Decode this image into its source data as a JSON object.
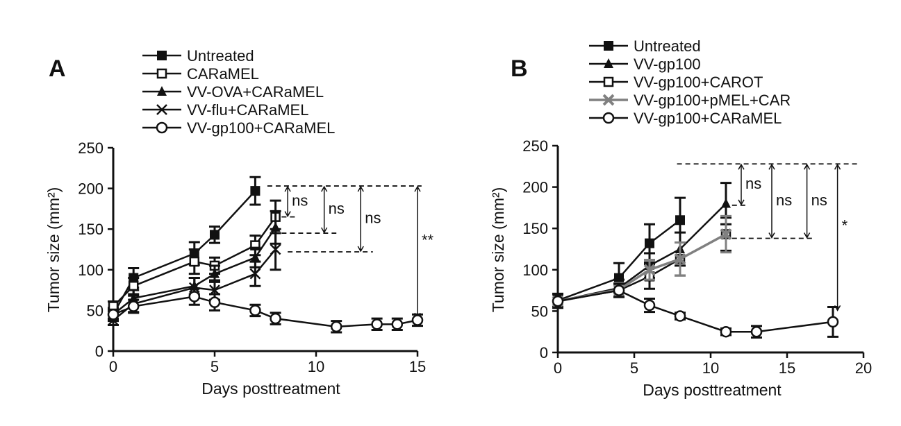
{
  "chart_data": [
    {
      "panel_label": "A",
      "type": "line",
      "xlabel": "Days posttreatment",
      "ylabel": "Tumor size (mm²)",
      "xlim": [
        0,
        15
      ],
      "ylim": [
        0,
        250
      ],
      "xticks": [
        0,
        5,
        10,
        15
      ],
      "yticks": [
        0,
        50,
        100,
        150,
        200,
        250
      ],
      "legend": "top",
      "grid": false,
      "series": [
        {
          "name": "Untreated",
          "marker": "square-filled",
          "color": "#111111",
          "x": [
            0,
            1,
            4,
            5,
            7
          ],
          "y": [
            45,
            90,
            120,
            143,
            197
          ],
          "err": [
            8,
            12,
            14,
            10,
            17
          ]
        },
        {
          "name": "CARaMEL",
          "marker": "square-open",
          "color": "#111111",
          "x": [
            0,
            1,
            4,
            5,
            7,
            8
          ],
          "y": [
            55,
            80,
            110,
            105,
            130,
            165
          ],
          "err": [
            6,
            10,
            15,
            10,
            12,
            20
          ]
        },
        {
          "name": "VV-OVA+CARaMEL",
          "marker": "triangle-filled",
          "color": "#111111",
          "x": [
            0,
            1,
            4,
            5,
            7,
            8
          ],
          "y": [
            45,
            65,
            80,
            95,
            115,
            152
          ],
          "err": [
            6,
            10,
            10,
            10,
            12,
            20
          ]
        },
        {
          "name": "VV-flu+CARaMEL",
          "marker": "x",
          "color": "#111111",
          "x": [
            0,
            1,
            4,
            5,
            7,
            8
          ],
          "y": [
            38,
            58,
            78,
            75,
            95,
            125
          ],
          "err": [
            6,
            10,
            12,
            12,
            15,
            25
          ]
        },
        {
          "name": "VV-gp100+CARaMEL",
          "marker": "circle-open",
          "color": "#111111",
          "x": [
            0,
            1,
            4,
            5,
            7,
            8,
            11,
            13,
            14,
            15
          ],
          "y": [
            45,
            55,
            67,
            60,
            50,
            40,
            30,
            33,
            33,
            38
          ],
          "err": [
            5,
            8,
            10,
            10,
            7,
            7,
            7,
            7,
            7,
            7
          ]
        }
      ],
      "annotations": [
        {
          "label": "ns",
          "x": 8.6,
          "from": 203,
          "to": 165
        },
        {
          "label": "ns",
          "x": 10.4,
          "from": 203,
          "to": 145
        },
        {
          "label": "ns",
          "x": 12.2,
          "from": 203,
          "to": 122
        },
        {
          "label": "**",
          "x": 15,
          "from": 203,
          "to": 40
        }
      ],
      "dashed_lines": [
        {
          "y": 203,
          "x": [
            7.6,
            15.2
          ]
        },
        {
          "y": 165,
          "x": [
            8.3,
            9.1
          ]
        },
        {
          "y": 145,
          "x": [
            8.3,
            11
          ]
        },
        {
          "y": 122,
          "x": [
            8.6,
            12.8
          ]
        }
      ]
    },
    {
      "panel_label": "B",
      "type": "line",
      "xlabel": "Days posttreatment",
      "ylabel": "Tumor size (mm²)",
      "xlim": [
        0,
        20
      ],
      "ylim": [
        0,
        250
      ],
      "xticks": [
        0,
        5,
        10,
        15,
        20
      ],
      "yticks": [
        0,
        50,
        100,
        150,
        200,
        250
      ],
      "legend": "top",
      "grid": false,
      "series": [
        {
          "name": "Untreated",
          "marker": "square-filled",
          "color": "#111111",
          "x": [
            0,
            4,
            6,
            8
          ],
          "y": [
            63,
            90,
            132,
            160
          ],
          "err": [
            8,
            18,
            23,
            27
          ]
        },
        {
          "name": "VV-gp100",
          "marker": "triangle-filled",
          "color": "#111111",
          "x": [
            0,
            4,
            6,
            8,
            11
          ],
          "y": [
            62,
            78,
            105,
            125,
            180
          ],
          "err": [
            8,
            10,
            15,
            20,
            25
          ]
        },
        {
          "name": "VV-gp100+CAROT",
          "marker": "square-open",
          "color": "#111111",
          "x": [
            0,
            4,
            6,
            8,
            11
          ],
          "y": [
            62,
            75,
            92,
            113,
            143
          ],
          "err": [
            8,
            8,
            15,
            20,
            20
          ]
        },
        {
          "name": "VV-gp100+pMEL+CAR",
          "marker": "x",
          "color": "#808080",
          "x": [
            0,
            4,
            6,
            8,
            11
          ],
          "y": [
            62,
            76,
            100,
            113,
            143
          ],
          "err": [
            8,
            8,
            12,
            20,
            22
          ]
        },
        {
          "name": "VV-gp100+CARaMEL",
          "marker": "circle-open",
          "color": "#111111",
          "x": [
            0,
            4,
            6,
            8,
            11,
            13,
            18
          ],
          "y": [
            62,
            75,
            57,
            44,
            25,
            25,
            37
          ],
          "err": [
            8,
            8,
            8,
            4,
            4,
            7,
            18
          ]
        }
      ],
      "annotations": [
        {
          "label": "ns",
          "x": 12,
          "from": 228,
          "to": 178
        },
        {
          "label": "ns",
          "x": 14,
          "from": 228,
          "to": 138
        },
        {
          "label": "ns",
          "x": 16.3,
          "from": 228,
          "to": 138
        },
        {
          "label": "*",
          "x": 18.3,
          "from": 228,
          "to": 50
        }
      ],
      "dashed_lines": [
        {
          "y": 228,
          "x": [
            7.8,
            19.6
          ]
        },
        {
          "y": 178,
          "x": [
            11.4,
            12.4
          ]
        },
        {
          "y": 138,
          "x": [
            11.4,
            16.8
          ]
        }
      ]
    }
  ]
}
